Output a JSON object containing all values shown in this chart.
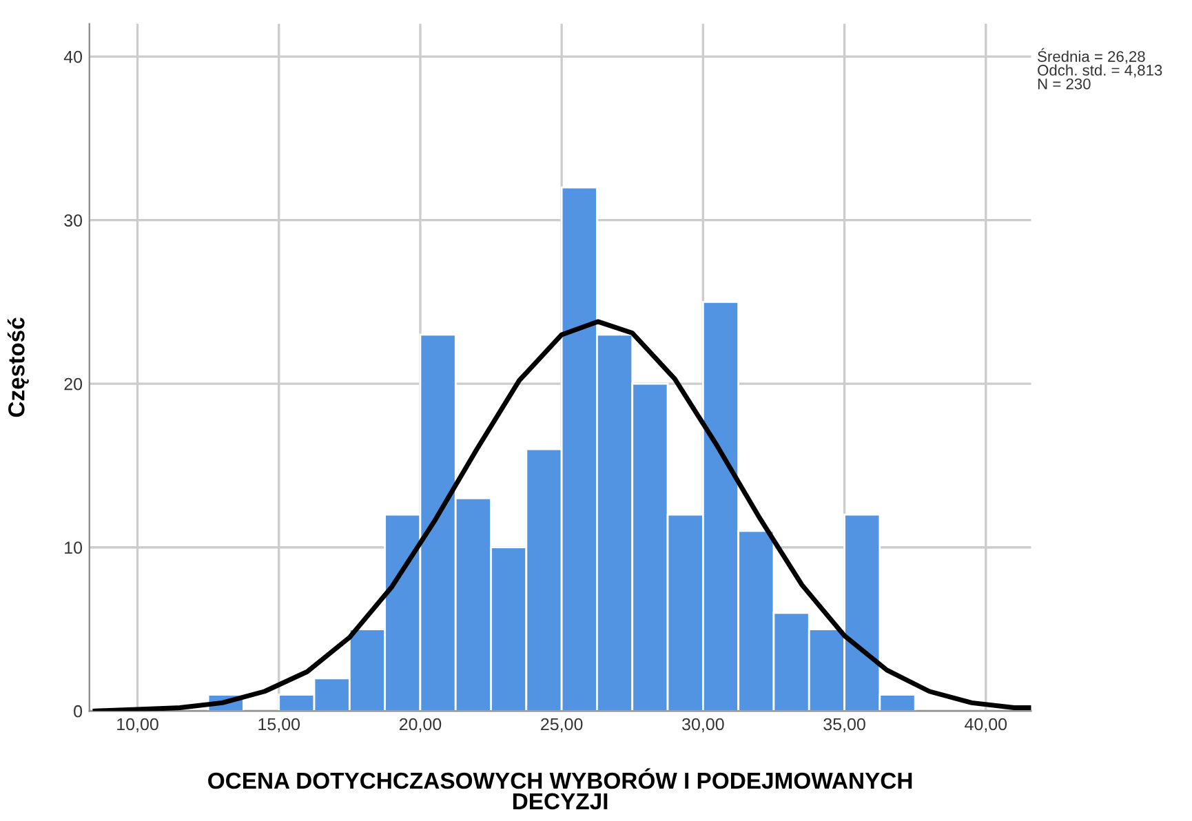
{
  "chart_data": {
    "type": "histogram",
    "xlabel": "OCENA DOTYCHCZASOWYCH WYBORÓW I PODEJMOWANYCH\nDECYZJI",
    "ylabel": "Częstość",
    "annotations": [
      "Średnia = 26,28\nOdch. std. = 4,813\nN = 230"
    ],
    "color": "#5294e2",
    "bins": [
      12.5,
      13.75,
      15,
      16.25,
      17.5,
      18.75,
      20,
      21.25,
      22.5,
      23.75,
      25,
      26.25,
      27.5,
      28.75,
      30,
      31.25,
      32.5,
      33.75,
      35,
      36.25,
      37.5
    ],
    "values": [
      1,
      0,
      1,
      2,
      5,
      12,
      23,
      13,
      10,
      16,
      32,
      23,
      20,
      12,
      25,
      11,
      6,
      5,
      12,
      1
    ],
    "series": [
      {
        "type": "line",
        "color": "#000000",
        "x": [
          8.5,
          10,
          11.5,
          13,
          14.5,
          16,
          17.5,
          19,
          20.5,
          22,
          23.5,
          25,
          26.28,
          27.5,
          29,
          30.5,
          32,
          33.5,
          35,
          36.5,
          38,
          39.5,
          41,
          41.6
        ],
        "values": [
          0.0,
          0.1,
          0.2,
          0.5,
          1.2,
          2.4,
          4.5,
          7.6,
          11.6,
          16.0,
          20.2,
          23.0,
          23.8,
          23.1,
          20.3,
          16.2,
          11.8,
          7.7,
          4.6,
          2.5,
          1.2,
          0.5,
          0.2,
          0.2
        ]
      }
    ],
    "xlim": [
      8.3,
      41.6
    ],
    "ylim": [
      0,
      42
    ],
    "xticks": [
      {
        "value": 10,
        "label": "10,00"
      },
      {
        "value": 15,
        "label": "15,00"
      },
      {
        "value": 20,
        "label": "20,00"
      },
      {
        "value": 25,
        "label": "25,00"
      },
      {
        "value": 30,
        "label": "30,00"
      },
      {
        "value": 35,
        "label": "35,00"
      },
      {
        "value": 40,
        "label": "40,00"
      }
    ],
    "yticks": [
      0,
      10,
      20,
      30,
      40
    ],
    "grid": true,
    "legend": false
  }
}
